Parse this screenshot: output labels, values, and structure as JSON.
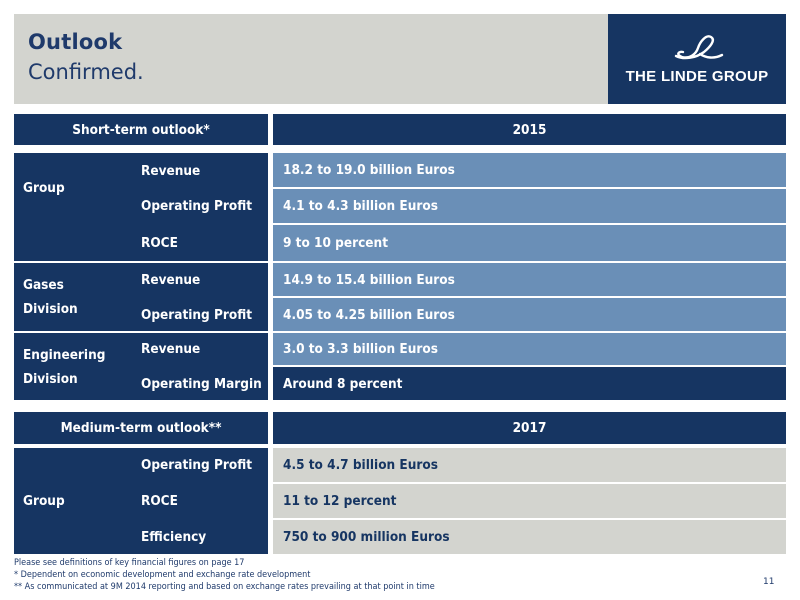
{
  "header": {
    "title": "Outlook",
    "subtitle": "Confirmed."
  },
  "logo": {
    "text": "THE LINDE GROUP"
  },
  "short_term": {
    "header_label": "Short-term outlook*",
    "header_year": "2015",
    "groups": [
      {
        "name": "Group",
        "rows": [
          {
            "metric": "Revenue",
            "value": "18.2 to 19.0 billion Euros"
          },
          {
            "metric": "Operating Profit",
            "value": "4.1 to 4.3 billion Euros"
          },
          {
            "metric": "ROCE",
            "value": "9 to 10 percent"
          }
        ]
      },
      {
        "name_line1": "Gases",
        "name_line2": "Division",
        "rows": [
          {
            "metric": "Revenue",
            "value": "14.9 to 15.4 billion Euros"
          },
          {
            "metric": "Operating Profit",
            "value": "4.05 to 4.25 billion Euros"
          }
        ]
      },
      {
        "name_line1": "Engineering",
        "name_line2": "Division",
        "rows": [
          {
            "metric": "Revenue",
            "value": "3.0 to 3.3 billion Euros"
          },
          {
            "metric": "Operating Margin",
            "value": "Around 8 percent"
          }
        ]
      }
    ]
  },
  "medium_term": {
    "header_label": "Medium-term outlook**",
    "header_year": "2017",
    "group": {
      "name": "Group",
      "rows": [
        {
          "metric": "Operating Profit",
          "value": "4.5 to 4.7 billion Euros"
        },
        {
          "metric": "ROCE",
          "value": "11 to 12 percent"
        },
        {
          "metric": "Efficiency",
          "value": "750 to 900 million Euros"
        }
      ]
    }
  },
  "footnotes": [
    "Please see definitions of key financial figures on page 17",
    "* Dependent on economic development and exchange rate development",
    "** As communicated at 9M 2014 reporting and based on exchange rates prevailing at that point in time"
  ],
  "page_number": "11",
  "colors": {
    "navy": "#163562",
    "steel_blue": "#6a8fb7",
    "grey": "#d3d4cf"
  }
}
